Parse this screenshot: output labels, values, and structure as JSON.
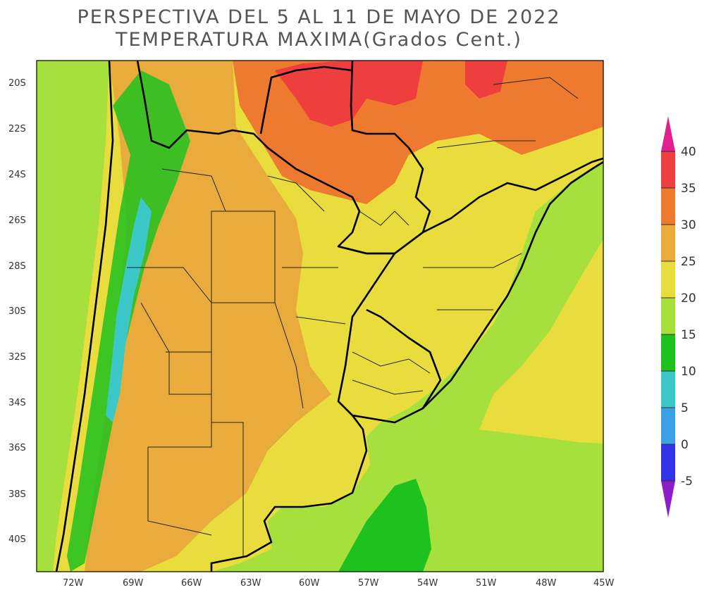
{
  "title": {
    "line1": "PERSPECTIVA DEL 5 AL 11 DE MAYO DE 2022",
    "line2": "TEMPERATURA MAXIMA(Grados Cent.)"
  },
  "axes": {
    "lat_labels": [
      "20S",
      "22S",
      "24S",
      "26S",
      "28S",
      "30S",
      "32S",
      "34S",
      "36S",
      "38S",
      "40S"
    ],
    "lon_labels": [
      "72W",
      "69W",
      "66W",
      "63W",
      "60W",
      "57W",
      "54W",
      "51W",
      "48W",
      "45W"
    ]
  },
  "colorbar": {
    "levels": [
      "40",
      "35",
      "30",
      "25",
      "20",
      "15",
      "10",
      "5",
      "0",
      "-5"
    ],
    "colors": [
      "#e0208c",
      "#ee3e3e",
      "#ee7a30",
      "#e8ab3c",
      "#e8dd3c",
      "#a6e03c",
      "#1ec21e",
      "#3cc8c8",
      "#3ca0e6",
      "#3232e6",
      "#8c1ec8"
    ]
  },
  "map_regions": {
    "ocean": "#a6e03c",
    "chile_coast": "#a6e03c",
    "andes_low": "#3cc8c8",
    "andes_mid": "#1ec21e",
    "central_argentina": "#e8ab3c",
    "north_hot": "#ee7a30",
    "bolivia_core": "#ee3e3e",
    "littoral": "#e8dd3c",
    "ocean_cool": "#1ec21e"
  }
}
